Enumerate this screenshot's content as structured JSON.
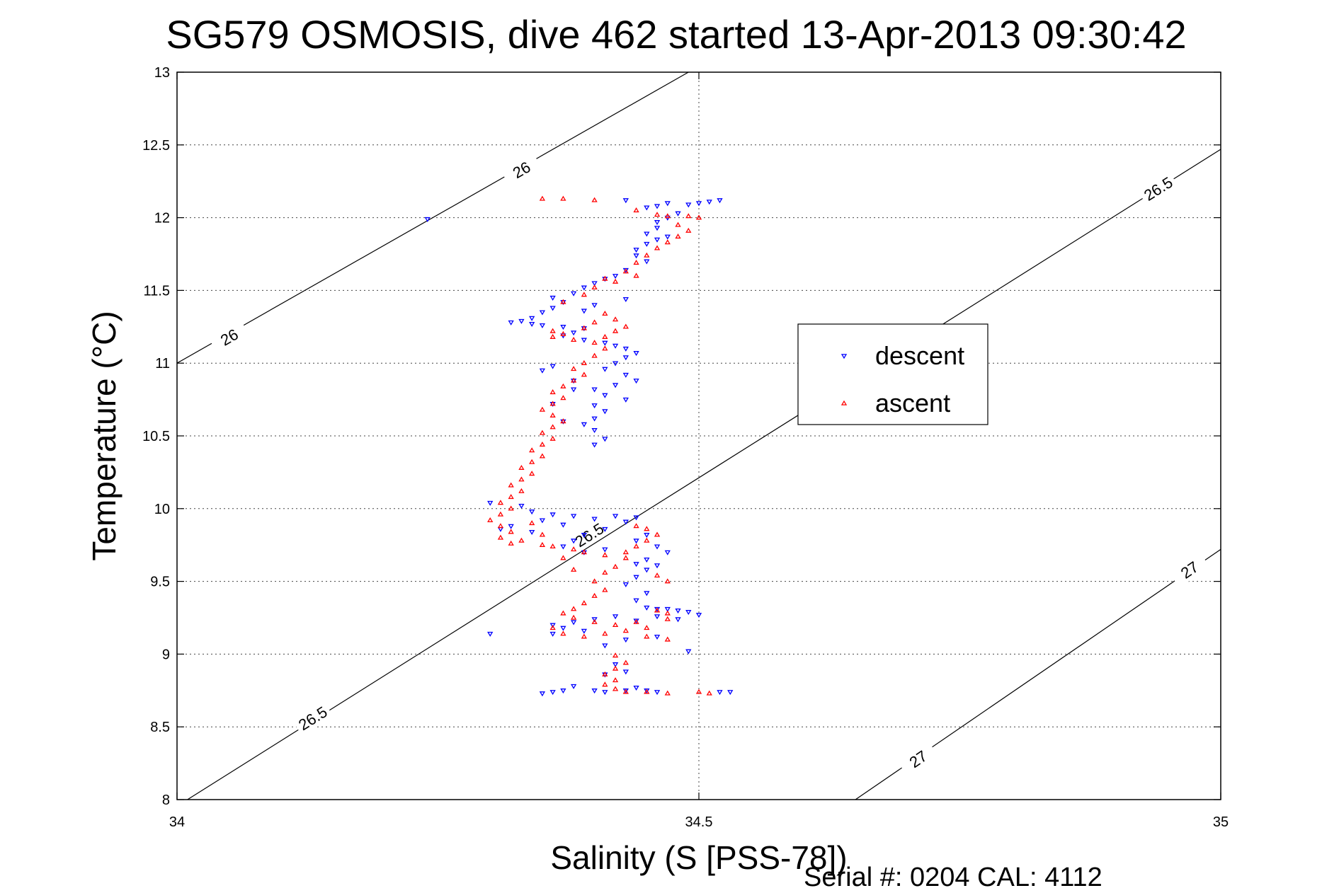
{
  "chart_data": {
    "type": "scatter",
    "title": "SG579 OSMOSIS, dive 462 started 13-Apr-2013 09:30:42",
    "xlabel": "Salinity (S [PSS-78])",
    "ylabel": "Temperature (°C)",
    "footer": "Serial #: 0204  CAL: 4112",
    "xlim": [
      34,
      35
    ],
    "ylim": [
      8,
      13
    ],
    "xticks": [
      "34",
      "34.5",
      "35"
    ],
    "yticks": [
      "8",
      "8.5",
      "9",
      "9.5",
      "10",
      "10.5",
      "11",
      "11.5",
      "12",
      "12.5",
      "13"
    ],
    "grid": true,
    "legend_position": "right-middle",
    "density_contours": [
      {
        "level": 26,
        "points": [
          [
            34.0,
            11.0
          ],
          [
            34.49,
            13.0
          ]
        ],
        "labels": [
          {
            "text": "26",
            "x": 34.05,
            "y": 11.18
          },
          {
            "text": "26",
            "x": 34.33,
            "y": 12.33
          }
        ]
      },
      {
        "level": 26.5,
        "points": [
          [
            34.01,
            8.0
          ],
          [
            35.0,
            12.47
          ]
        ],
        "labels": [
          {
            "text": "26.5",
            "x": 34.13,
            "y": 8.56
          },
          {
            "text": "26.5",
            "x": 34.395,
            "y": 9.82
          },
          {
            "text": "26.5",
            "x": 34.94,
            "y": 12.2
          }
        ]
      },
      {
        "level": 27,
        "points": [
          [
            34.65,
            8.0
          ],
          [
            35.0,
            9.72
          ]
        ],
        "labels": [
          {
            "text": "27",
            "x": 34.71,
            "y": 8.28
          },
          {
            "text": "27",
            "x": 34.97,
            "y": 9.58
          }
        ]
      }
    ],
    "series": [
      {
        "name": "descent",
        "color": "#0000ff",
        "marker": "triangle-down",
        "points": [
          [
            34.24,
            11.99
          ],
          [
            34.52,
            12.12
          ],
          [
            34.51,
            12.11
          ],
          [
            34.5,
            12.1
          ],
          [
            34.49,
            12.09
          ],
          [
            34.47,
            12.1
          ],
          [
            34.46,
            12.08
          ],
          [
            34.45,
            12.07
          ],
          [
            34.43,
            12.12
          ],
          [
            34.48,
            12.03
          ],
          [
            34.47,
            12.0
          ],
          [
            34.46,
            11.97
          ],
          [
            34.46,
            11.93
          ],
          [
            34.45,
            11.89
          ],
          [
            34.46,
            11.85
          ],
          [
            34.45,
            11.82
          ],
          [
            34.47,
            11.87
          ],
          [
            34.44,
            11.78
          ],
          [
            34.44,
            11.74
          ],
          [
            34.45,
            11.7
          ],
          [
            34.43,
            11.64
          ],
          [
            34.42,
            11.6
          ],
          [
            34.41,
            11.58
          ],
          [
            34.4,
            11.55
          ],
          [
            34.39,
            11.52
          ],
          [
            34.38,
            11.48
          ],
          [
            34.36,
            11.45
          ],
          [
            34.37,
            11.42
          ],
          [
            34.36,
            11.38
          ],
          [
            34.35,
            11.35
          ],
          [
            34.34,
            11.31
          ],
          [
            34.33,
            11.29
          ],
          [
            34.32,
            11.28
          ],
          [
            34.34,
            11.27
          ],
          [
            34.35,
            11.26
          ],
          [
            34.37,
            11.25
          ],
          [
            34.39,
            11.24
          ],
          [
            34.38,
            11.21
          ],
          [
            34.37,
            11.19
          ],
          [
            34.39,
            11.16
          ],
          [
            34.41,
            11.14
          ],
          [
            34.42,
            11.12
          ],
          [
            34.43,
            11.1
          ],
          [
            34.44,
            11.07
          ],
          [
            34.43,
            11.04
          ],
          [
            34.42,
            11.0
          ],
          [
            34.41,
            10.96
          ],
          [
            34.43,
            10.92
          ],
          [
            34.44,
            10.88
          ],
          [
            34.42,
            10.85
          ],
          [
            34.4,
            10.82
          ],
          [
            34.41,
            10.78
          ],
          [
            34.43,
            10.75
          ],
          [
            34.4,
            10.71
          ],
          [
            34.41,
            10.67
          ],
          [
            34.4,
            10.62
          ],
          [
            34.39,
            10.58
          ],
          [
            34.4,
            10.54
          ],
          [
            34.41,
            10.48
          ],
          [
            34.4,
            10.44
          ],
          [
            34.37,
            10.6
          ],
          [
            34.36,
            10.72
          ],
          [
            34.35,
            10.95
          ],
          [
            34.38,
            10.82
          ],
          [
            34.33,
            10.02
          ],
          [
            34.34,
            9.98
          ],
          [
            34.36,
            9.96
          ],
          [
            34.35,
            9.92
          ],
          [
            34.37,
            9.89
          ],
          [
            34.32,
            9.88
          ],
          [
            34.31,
            9.86
          ],
          [
            34.34,
            9.84
          ],
          [
            34.3,
            10.04
          ],
          [
            34.38,
            9.95
          ],
          [
            34.4,
            9.93
          ],
          [
            34.42,
            9.95
          ],
          [
            34.44,
            9.94
          ],
          [
            34.43,
            9.91
          ],
          [
            34.41,
            9.86
          ],
          [
            34.39,
            9.82
          ],
          [
            34.38,
            9.78
          ],
          [
            34.37,
            9.74
          ],
          [
            34.39,
            9.7
          ],
          [
            34.41,
            9.72
          ],
          [
            34.44,
            9.78
          ],
          [
            34.45,
            9.82
          ],
          [
            34.46,
            9.74
          ],
          [
            34.45,
            9.65
          ],
          [
            34.44,
            9.62
          ],
          [
            34.45,
            9.58
          ],
          [
            34.44,
            9.53
          ],
          [
            34.43,
            9.48
          ],
          [
            34.45,
            9.42
          ],
          [
            34.44,
            9.37
          ],
          [
            34.45,
            9.32
          ],
          [
            34.46,
            9.31
          ],
          [
            34.47,
            9.31
          ],
          [
            34.48,
            9.3
          ],
          [
            34.49,
            9.29
          ],
          [
            34.5,
            9.27
          ],
          [
            34.48,
            9.24
          ],
          [
            34.46,
            9.26
          ],
          [
            34.44,
            9.23
          ],
          [
            34.42,
            9.26
          ],
          [
            34.4,
            9.24
          ],
          [
            34.38,
            9.22
          ],
          [
            34.36,
            9.2
          ],
          [
            34.37,
            9.18
          ],
          [
            34.36,
            9.14
          ],
          [
            34.3,
            9.14
          ],
          [
            34.39,
            9.16
          ],
          [
            34.43,
            9.1
          ],
          [
            34.41,
            9.06
          ],
          [
            34.46,
            9.12
          ],
          [
            34.49,
            9.02
          ],
          [
            34.42,
            8.93
          ],
          [
            34.43,
            8.88
          ],
          [
            34.41,
            8.86
          ],
          [
            34.38,
            8.78
          ],
          [
            34.4,
            8.75
          ],
          [
            34.41,
            8.74
          ],
          [
            34.43,
            8.75
          ],
          [
            34.44,
            8.77
          ],
          [
            34.45,
            8.75
          ],
          [
            34.46,
            8.74
          ],
          [
            34.52,
            8.74
          ],
          [
            34.53,
            8.74
          ],
          [
            34.37,
            8.75
          ],
          [
            34.36,
            8.74
          ],
          [
            34.35,
            8.73
          ],
          [
            34.46,
            9.61
          ],
          [
            34.47,
            9.7
          ],
          [
            34.39,
            11.36
          ],
          [
            34.4,
            11.4
          ],
          [
            34.43,
            11.44
          ],
          [
            34.36,
            10.98
          ],
          [
            34.38,
            10.88
          ]
        ]
      },
      {
        "name": "ascent",
        "color": "#ff0000",
        "marker": "triangle-up",
        "points": [
          [
            34.37,
            12.13
          ],
          [
            34.4,
            12.12
          ],
          [
            34.44,
            12.05
          ],
          [
            34.46,
            12.02
          ],
          [
            34.47,
            12.01
          ],
          [
            34.49,
            12.01
          ],
          [
            34.5,
            12.0
          ],
          [
            34.48,
            11.95
          ],
          [
            34.49,
            11.91
          ],
          [
            34.48,
            11.87
          ],
          [
            34.47,
            11.83
          ],
          [
            34.46,
            11.79
          ],
          [
            34.45,
            11.74
          ],
          [
            34.44,
            11.69
          ],
          [
            34.43,
            11.63
          ],
          [
            34.41,
            11.58
          ],
          [
            34.4,
            11.52
          ],
          [
            34.39,
            11.47
          ],
          [
            34.36,
            11.22
          ],
          [
            34.37,
            11.2
          ],
          [
            34.36,
            11.18
          ],
          [
            34.38,
            11.16
          ],
          [
            34.4,
            11.14
          ],
          [
            34.41,
            11.18
          ],
          [
            34.42,
            11.22
          ],
          [
            34.43,
            11.25
          ],
          [
            34.42,
            11.3
          ],
          [
            34.41,
            11.34
          ],
          [
            34.4,
            11.28
          ],
          [
            34.39,
            11.24
          ],
          [
            34.41,
            11.1
          ],
          [
            34.4,
            11.05
          ],
          [
            34.39,
            11.0
          ],
          [
            34.38,
            10.96
          ],
          [
            34.39,
            10.92
          ],
          [
            34.38,
            10.88
          ],
          [
            34.37,
            10.84
          ],
          [
            34.36,
            10.8
          ],
          [
            34.37,
            10.76
          ],
          [
            34.36,
            10.72
          ],
          [
            34.35,
            10.68
          ],
          [
            34.36,
            10.64
          ],
          [
            34.37,
            10.6
          ],
          [
            34.36,
            10.56
          ],
          [
            34.35,
            10.52
          ],
          [
            34.36,
            10.48
          ],
          [
            34.35,
            10.44
          ],
          [
            34.34,
            10.4
          ],
          [
            34.35,
            10.36
          ],
          [
            34.34,
            10.32
          ],
          [
            34.33,
            10.28
          ],
          [
            34.34,
            10.24
          ],
          [
            34.33,
            10.2
          ],
          [
            34.32,
            10.16
          ],
          [
            34.33,
            10.12
          ],
          [
            34.32,
            10.08
          ],
          [
            34.31,
            10.04
          ],
          [
            34.32,
            10.0
          ],
          [
            34.31,
            9.96
          ],
          [
            34.3,
            9.92
          ],
          [
            34.31,
            9.88
          ],
          [
            34.32,
            9.84
          ],
          [
            34.31,
            9.8
          ],
          [
            34.32,
            9.76
          ],
          [
            34.33,
            9.78
          ],
          [
            34.35,
            9.75
          ],
          [
            34.36,
            9.74
          ],
          [
            34.38,
            9.72
          ],
          [
            34.39,
            9.7
          ],
          [
            34.41,
            9.68
          ],
          [
            34.43,
            9.7
          ],
          [
            34.44,
            9.74
          ],
          [
            34.45,
            9.78
          ],
          [
            34.46,
            9.82
          ],
          [
            34.45,
            9.86
          ],
          [
            34.44,
            9.88
          ],
          [
            34.43,
            9.66
          ],
          [
            34.42,
            9.6
          ],
          [
            34.41,
            9.56
          ],
          [
            34.4,
            9.5
          ],
          [
            34.41,
            9.44
          ],
          [
            34.4,
            9.4
          ],
          [
            34.39,
            9.35
          ],
          [
            34.38,
            9.31
          ],
          [
            34.37,
            9.28
          ],
          [
            34.38,
            9.25
          ],
          [
            34.4,
            9.22
          ],
          [
            34.42,
            9.2
          ],
          [
            34.44,
            9.22
          ],
          [
            34.46,
            9.3
          ],
          [
            34.47,
            9.28
          ],
          [
            34.47,
            9.24
          ],
          [
            34.45,
            9.18
          ],
          [
            34.43,
            9.16
          ],
          [
            34.41,
            9.14
          ],
          [
            34.39,
            9.12
          ],
          [
            34.37,
            9.14
          ],
          [
            34.36,
            9.18
          ],
          [
            34.45,
            9.12
          ],
          [
            34.47,
            9.1
          ],
          [
            34.42,
            8.99
          ],
          [
            34.43,
            8.94
          ],
          [
            34.42,
            8.9
          ],
          [
            34.41,
            8.86
          ],
          [
            34.42,
            8.82
          ],
          [
            34.41,
            8.79
          ],
          [
            34.42,
            8.76
          ],
          [
            34.43,
            8.74
          ],
          [
            34.45,
            8.74
          ],
          [
            34.47,
            8.73
          ],
          [
            34.5,
            8.74
          ],
          [
            34.51,
            8.73
          ],
          [
            34.35,
            12.13
          ],
          [
            34.44,
            11.6
          ],
          [
            34.42,
            11.56
          ],
          [
            34.37,
            11.42
          ],
          [
            34.35,
            9.82
          ],
          [
            34.34,
            9.9
          ],
          [
            34.37,
            9.66
          ],
          [
            34.38,
            9.58
          ],
          [
            34.46,
            9.54
          ],
          [
            34.47,
            9.5
          ]
        ]
      }
    ]
  }
}
